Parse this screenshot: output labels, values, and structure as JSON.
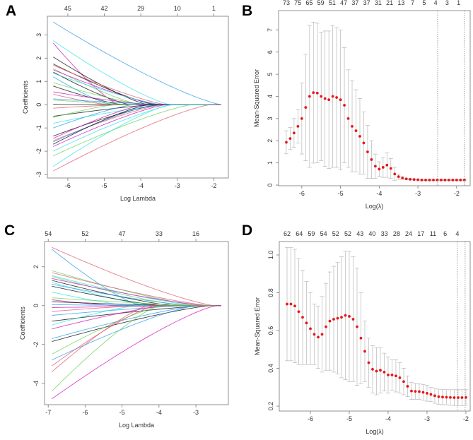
{
  "chart_data": [
    {
      "panel": "A",
      "type": "line",
      "xlabel": "Log Lambda",
      "ylabel": "Coefficients",
      "xlim": [
        -6.56,
        -1.6
      ],
      "ylim": [
        -3.15,
        3.8
      ],
      "xticks": [
        -6,
        -5,
        -4,
        -3,
        -2
      ],
      "yticks": [
        -3,
        -2,
        -1,
        0,
        1,
        2,
        3
      ],
      "top_axis": {
        "positions": [
          -6,
          -5,
          -4,
          -3,
          -2
        ],
        "labels": [
          "45",
          "42",
          "29",
          "10",
          "1"
        ]
      },
      "x_start": -6.4,
      "start_coefficients": [
        3.55,
        2.75,
        2.65,
        2.05,
        1.75,
        1.7,
        1.55,
        1.5,
        1.4,
        1.35,
        1.2,
        0.95,
        0.8,
        0.55,
        0.45,
        0.25,
        0.2,
        0.02,
        -0.15,
        -0.5,
        -0.55,
        -0.8,
        -1.0,
        -1.35,
        -1.45,
        -1.55,
        -1.6,
        -1.7,
        -1.8,
        -2.0,
        -2.2,
        -2.65,
        -2.85
      ],
      "zero_at": [
        -1.8,
        -3.2,
        -4.6,
        -3.8,
        -3.6,
        -3.3,
        -4.0,
        -3.5,
        -4.3,
        -3.4,
        -4.8,
        -3.9,
        -4.5,
        -3.7,
        -4.9,
        -3.2,
        -4.1,
        -5.9,
        -4.4,
        -3.6,
        -4.7,
        -3.3,
        -4.2,
        -3.5,
        -3.9,
        -3.4,
        -3.6,
        -3.8,
        -3.3,
        -3.1,
        -2.6,
        -3.2,
        -2.1
      ],
      "colors": [
        "#2297E6",
        "#28E2E5",
        "#CD0BBC",
        "#000000",
        "#000000",
        "#DF536B",
        "#61D04F",
        "#CD0BBC",
        "#000000",
        "#28E2E5",
        "#2297E6",
        "#61D04F",
        "#000000",
        "#CD0BBC",
        "#DF536B",
        "#2297E6",
        "#61D04F",
        "#000000",
        "#DF536B",
        "#000000",
        "#61D04F",
        "#28E2E5",
        "#2297E6",
        "#000000",
        "#CD0BBC",
        "#DF536B",
        "#2297E6",
        "#000000",
        "#CD0BBC",
        "#28E2E5",
        "#61D04F",
        "#28E2E5",
        "#DF536B"
      ]
    },
    {
      "panel": "B",
      "type": "scatter",
      "xlabel": "Log(λ)",
      "ylabel": "Mean-Squared Error",
      "xlim": [
        -6.6,
        -1.65
      ],
      "ylim": [
        -0.03,
        7.87
      ],
      "xticks": [
        -6,
        -5,
        -4,
        -3,
        -2
      ],
      "yticks": [
        0,
        1,
        2,
        3,
        4,
        5,
        6,
        7
      ],
      "top_axis": {
        "range": [
          -6.4,
          -1.95
        ],
        "labels": [
          "73",
          "75",
          "65",
          "59",
          "51",
          "47",
          "37",
          "37",
          "31",
          "21",
          "13",
          "7",
          "5",
          "4",
          "3",
          "1"
        ]
      },
      "vlines": [
        -2.49,
        -1.8
      ],
      "point_color": "#E8161B",
      "x": [
        -6.4,
        -6.3,
        -6.2,
        -6.1,
        -6.0,
        -5.9,
        -5.8,
        -5.7,
        -5.6,
        -5.5,
        -5.4,
        -5.3,
        -5.2,
        -5.1,
        -5.0,
        -4.9,
        -4.8,
        -4.7,
        -4.6,
        -4.5,
        -4.4,
        -4.3,
        -4.2,
        -4.1,
        -4.0,
        -3.9,
        -3.8,
        -3.7,
        -3.6,
        -3.5,
        -3.4,
        -3.3,
        -3.2,
        -3.1,
        -3.0,
        -2.9,
        -2.8,
        -2.7,
        -2.6,
        -2.5,
        -2.4,
        -2.3,
        -2.2,
        -2.1,
        -2.0,
        -1.9,
        -1.8
      ],
      "mse": [
        1.93,
        2.1,
        2.35,
        2.65,
        3.0,
        3.5,
        4.0,
        4.17,
        4.15,
        4.0,
        3.9,
        3.85,
        4.0,
        3.95,
        3.85,
        3.6,
        3.0,
        2.65,
        2.45,
        2.2,
        1.9,
        1.5,
        1.15,
        0.85,
        0.72,
        0.8,
        0.9,
        0.75,
        0.5,
        0.38,
        0.32,
        0.28,
        0.26,
        0.25,
        0.24,
        0.23,
        0.23,
        0.23,
        0.23,
        0.23,
        0.23,
        0.23,
        0.23,
        0.23,
        0.23,
        0.23,
        0.23
      ],
      "upper": [
        2.45,
        2.6,
        3.0,
        3.4,
        4.6,
        5.9,
        7.2,
        7.35,
        7.3,
        6.9,
        6.95,
        6.95,
        7.2,
        7.1,
        7.0,
        6.2,
        5.2,
        4.7,
        4.3,
        3.9,
        3.3,
        2.7,
        2.0,
        1.4,
        1.05,
        1.25,
        1.45,
        1.2,
        0.8,
        0.5,
        0.38,
        0.31,
        0.28,
        0.27,
        0.26,
        0.25,
        0.25,
        0.25,
        0.25,
        0.25,
        0.25,
        0.25,
        0.25,
        0.25,
        0.25,
        0.25,
        0.25
      ]
    },
    {
      "panel": "C",
      "type": "line",
      "xlabel": "Log Lambda",
      "ylabel": "Coefficients",
      "xlim": [
        -7.1,
        -2.12
      ],
      "ylim": [
        -5.1,
        3.3
      ],
      "xticks": [
        -7,
        -6,
        -5,
        -4,
        -3
      ],
      "yticks": [
        -4,
        -2,
        0,
        2
      ],
      "top_axis": {
        "positions": [
          -7,
          -6,
          -5,
          -4,
          -3
        ],
        "labels": [
          "54",
          "52",
          "47",
          "33",
          "16"
        ]
      },
      "x_start": -6.9,
      "start_coefficients": [
        3.0,
        2.9,
        1.8,
        1.7,
        1.55,
        1.5,
        1.4,
        1.3,
        1.2,
        1.1,
        1.0,
        0.7,
        0.4,
        0.3,
        0.2,
        0.05,
        -0.1,
        -0.3,
        -0.5,
        -0.8,
        -1.0,
        -1.2,
        -1.7,
        -1.85,
        -2.5,
        -2.8,
        -3.1,
        -3.4,
        -4.4,
        -4.8
      ],
      "zero_at": [
        -2.5,
        -4.5,
        -2.9,
        -2.6,
        -3.0,
        -3.3,
        -2.7,
        -3.6,
        -4.2,
        -3.1,
        -3.9,
        -4.8,
        -2.8,
        -5.2,
        -3.5,
        -4.0,
        -2.6,
        -4.4,
        -3.2,
        -2.7,
        -4.6,
        -3.8,
        -2.9,
        -2.6,
        -3.9,
        -3.0,
        -4.1,
        -4.3,
        -4.0,
        -2.45
      ],
      "colors": [
        "#DF536B",
        "#2297E6",
        "#61D04F",
        "#DF536B",
        "#28E2E5",
        "#61D04F",
        "#CD0BBC",
        "#000000",
        "#28E2E5",
        "#2297E6",
        "#000000",
        "#28E2E5",
        "#61D04F",
        "#CD0BBC",
        "#000000",
        "#2297E6",
        "#CD0BBC",
        "#DF536B",
        "#2297E6",
        "#000000",
        "#28E2E5",
        "#CD0BBC",
        "#2297E6",
        "#000000",
        "#61D04F",
        "#2297E6",
        "#DF536B",
        "#DF536B",
        "#61D04F",
        "#CD0BBC"
      ]
    },
    {
      "panel": "D",
      "type": "scatter",
      "xlabel": "Log(λ)",
      "ylabel": "Mean-Squared Error",
      "xlim": [
        -6.8,
        -1.89
      ],
      "ylim": [
        0.174,
        1.071
      ],
      "xticks": [
        -6,
        -5,
        -4,
        -3,
        -2
      ],
      "yticks": [
        "0.2",
        "0.4",
        "0.6",
        "0.8",
        "1.0"
      ],
      "top_axis": {
        "range": [
          -6.6,
          -2.22
        ],
        "labels": [
          "62",
          "64",
          "59",
          "54",
          "52",
          "52",
          "43",
          "40",
          "33",
          "28",
          "24",
          "17",
          "11",
          "6",
          "4"
        ]
      },
      "vlines": [
        -2.22,
        -2.02
      ],
      "point_color": "#E8161B",
      "x": [
        -6.6,
        -6.5,
        -6.4,
        -6.3,
        -6.2,
        -6.1,
        -6.0,
        -5.9,
        -5.8,
        -5.7,
        -5.6,
        -5.5,
        -5.4,
        -5.3,
        -5.2,
        -5.1,
        -5.0,
        -4.9,
        -4.8,
        -4.7,
        -4.6,
        -4.5,
        -4.4,
        -4.3,
        -4.2,
        -4.1,
        -4.0,
        -3.9,
        -3.8,
        -3.7,
        -3.6,
        -3.5,
        -3.4,
        -3.3,
        -3.2,
        -3.1,
        -3.0,
        -2.9,
        -2.8,
        -2.7,
        -2.6,
        -2.5,
        -2.4,
        -2.3,
        -2.2,
        -2.1,
        -2.0
      ],
      "mse": [
        0.74,
        0.74,
        0.73,
        0.7,
        0.67,
        0.64,
        0.61,
        0.58,
        0.565,
        0.58,
        0.62,
        0.65,
        0.66,
        0.665,
        0.67,
        0.68,
        0.675,
        0.66,
        0.62,
        0.56,
        0.49,
        0.43,
        0.395,
        0.385,
        0.39,
        0.38,
        0.365,
        0.365,
        0.36,
        0.35,
        0.33,
        0.305,
        0.28,
        0.278,
        0.277,
        0.273,
        0.268,
        0.262,
        0.255,
        0.25,
        0.248,
        0.247,
        0.246,
        0.245,
        0.245,
        0.245,
        0.246
      ],
      "upper": [
        1.04,
        1.04,
        1.03,
        0.98,
        0.92,
        0.86,
        0.8,
        0.74,
        0.73,
        0.78,
        0.85,
        0.91,
        0.94,
        0.96,
        0.99,
        1.02,
        1.02,
        0.99,
        0.93,
        0.8,
        0.65,
        0.56,
        0.52,
        0.51,
        0.51,
        0.48,
        0.46,
        0.445,
        0.445,
        0.43,
        0.4,
        0.36,
        0.325,
        0.32,
        0.318,
        0.315,
        0.31,
        0.3,
        0.295,
        0.29,
        0.288,
        0.287,
        0.287,
        0.287,
        0.287,
        0.287,
        0.287
      ]
    }
  ]
}
